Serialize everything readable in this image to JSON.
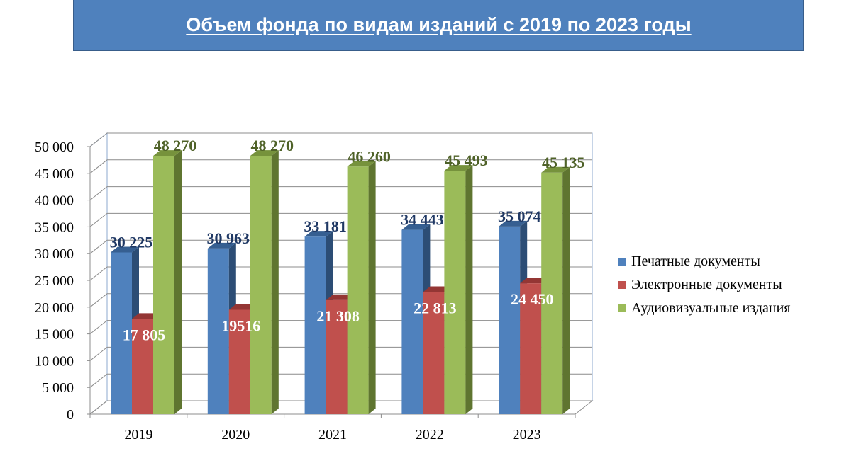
{
  "header": {
    "title": "Объем фонда по видам изданий с 2019 по 2023 годы"
  },
  "chart_data": {
    "type": "bar",
    "style": "3d-clustered-column",
    "title": "Объем фонда по видам изданий с 2019 по 2023 годы",
    "categories": [
      "2019",
      "2020",
      "2021",
      "2022",
      "2023"
    ],
    "ylim": [
      0,
      50000
    ],
    "ytick_step": 5000,
    "ytick_labels": [
      "0",
      "5 000",
      "10 000",
      "15 000",
      "20 000",
      "25 000",
      "30 000",
      "35 000",
      "40 000",
      "45 000",
      "50 000"
    ],
    "grid": true,
    "legend_position": "right",
    "series": [
      {
        "name": "Печатные документы",
        "values": [
          30225,
          30963,
          33181,
          34443,
          35074
        ],
        "labels": [
          "30 225",
          "30 963",
          "33 181",
          "34 443",
          "35 074"
        ],
        "color": "#4f81bd",
        "side_color": "#2c4d75",
        "top_color": "#365f91",
        "label_color": "#1f3864",
        "label_position": "above"
      },
      {
        "name": "Электронные документы",
        "values": [
          17805,
          19516,
          21308,
          22813,
          24450
        ],
        "labels": [
          "17 805",
          "19516",
          "21 308",
          "22 813",
          "24 450"
        ],
        "color": "#c0504d",
        "side_color": "#772c2a",
        "top_color": "#943634",
        "label_color": "#ffffff",
        "label_position": "inside"
      },
      {
        "name": "Аудиовизуальные издания",
        "values": [
          48270,
          48270,
          46260,
          45493,
          45135
        ],
        "labels": [
          "48 270",
          "48 270",
          "46 260",
          "45 493",
          "45 135"
        ],
        "color": "#9bbb59",
        "side_color": "#5f7530",
        "top_color": "#76923c",
        "label_color": "#4f6228",
        "label_position": "above"
      }
    ]
  }
}
